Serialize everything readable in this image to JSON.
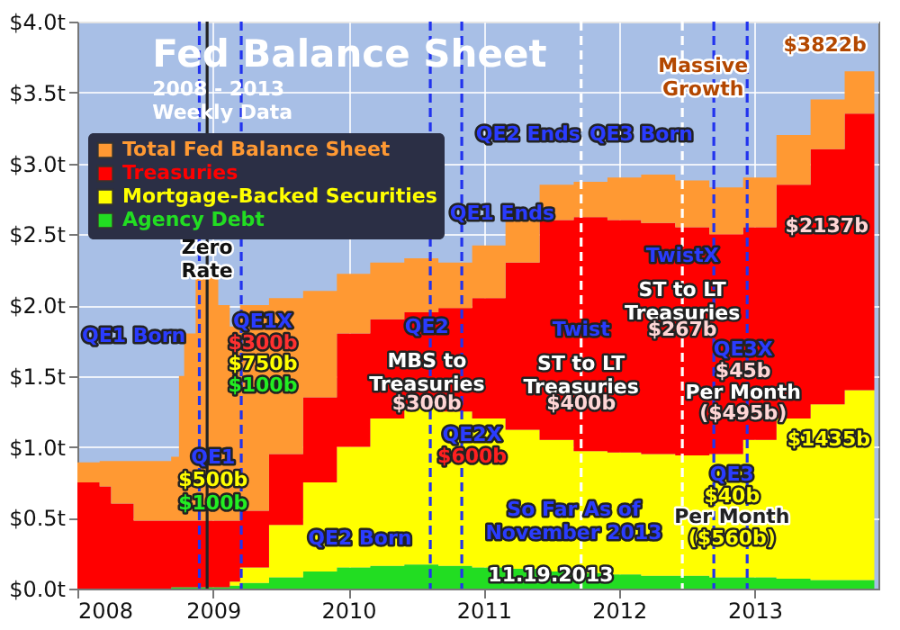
{
  "chart_data": {
    "type": "area",
    "stacked": true,
    "title": "Fed Balance Sheet",
    "subtitle": "2008 - 2013\nWeekly Data",
    "x": [
      "2008-01-01",
      "2008-03-01",
      "2008-04-01",
      "2008-06-01",
      "2008-09-10",
      "2008-10-01",
      "2008-10-15",
      "2008-11-15",
      "2008-12-17",
      "2009-01-15",
      "2009-02-15",
      "2009-03-15",
      "2009-06-01",
      "2009-09-01",
      "2009-12-01",
      "2010-03-01",
      "2010-06-01",
      "2010-09-01",
      "2010-12-01",
      "2011-03-01",
      "2011-06-01",
      "2011-09-01",
      "2011-12-01",
      "2012-03-01",
      "2012-06-01",
      "2012-09-01",
      "2012-12-01",
      "2013-03-01",
      "2013-06-01",
      "2013-09-01",
      "2013-11-20"
    ],
    "series": [
      {
        "name": "Agency Debt",
        "color": "#22dd22",
        "values": [
          0,
          0,
          0,
          0,
          0.01,
          0.01,
          0.01,
          0.01,
          0.01,
          0.01,
          0.02,
          0.04,
          0.08,
          0.12,
          0.15,
          0.16,
          0.17,
          0.16,
          0.15,
          0.14,
          0.12,
          0.11,
          0.1,
          0.09,
          0.09,
          0.08,
          0.08,
          0.07,
          0.06,
          0.06,
          0.06
        ]
      },
      {
        "name": "Mortgage-Backed Securities",
        "color": "#ffff00",
        "values": [
          0,
          0,
          0,
          0,
          0,
          0,
          0,
          0,
          0,
          0,
          0.03,
          0.11,
          0.37,
          0.63,
          0.85,
          1.04,
          1.11,
          1.09,
          1.05,
          0.98,
          0.93,
          0.86,
          0.86,
          0.86,
          0.85,
          0.87,
          0.97,
          1.13,
          1.24,
          1.34,
          1.43
        ]
      },
      {
        "name": "Treasuries",
        "color": "#ff0000",
        "values": [
          0.75,
          0.72,
          0.6,
          0.48,
          0.47,
          0.47,
          0.47,
          0.47,
          0.47,
          0.47,
          0.43,
          0.4,
          0.5,
          0.6,
          0.8,
          0.7,
          0.67,
          0.73,
          0.85,
          1.18,
          1.55,
          1.65,
          1.64,
          1.63,
          1.61,
          1.55,
          1.5,
          1.65,
          1.8,
          1.95,
          2.14
        ]
      },
      {
        "name": "Total Fed Balance Sheet",
        "color": "#ff9933",
        "values": [
          0.14,
          0.18,
          0.3,
          0.42,
          0.45,
          1.02,
          1.32,
          1.72,
          1.77,
          1.52,
          1.37,
          1.45,
          1.1,
          0.75,
          0.42,
          0.4,
          0.38,
          0.32,
          0.37,
          0.3,
          0.25,
          0.25,
          0.3,
          0.34,
          0.33,
          0.33,
          0.35,
          0.35,
          0.35,
          0.3,
          0.19
        ]
      }
    ],
    "xlim": [
      "2008-01-01",
      "2013-12-01"
    ],
    "xticks": [
      "2008",
      "2009",
      "2010",
      "2011",
      "2012",
      "2013"
    ],
    "ylim": [
      0,
      4
    ],
    "yticks": [
      {
        "value": 0,
        "label": "$0.0t"
      },
      {
        "value": 0.5,
        "label": "$0.5t"
      },
      {
        "value": 1,
        "label": "$1.0t"
      },
      {
        "value": 1.5,
        "label": "$1.5t"
      },
      {
        "value": 2,
        "label": "$2.0t"
      },
      {
        "value": 2.5,
        "label": "$2.5t"
      },
      {
        "value": 3,
        "label": "$3.0t"
      },
      {
        "value": 3.5,
        "label": "$3.5t"
      },
      {
        "value": 4,
        "label": "$4.0t"
      }
    ],
    "grid": true,
    "legend": "top left",
    "ref_lines": [
      {
        "axis": "x",
        "value": "2008-11-25",
        "color": "#2233ee",
        "line_style": "dashed"
      },
      {
        "axis": "x",
        "value": "2008-12-16",
        "color": "#222222",
        "line_style": "solid"
      },
      {
        "axis": "x",
        "value": "2009-03-18",
        "color": "#2233ee",
        "line_style": "dashed"
      },
      {
        "axis": "x",
        "value": "2010-08-10",
        "color": "#2233ee",
        "line_style": "dashed"
      },
      {
        "axis": "x",
        "value": "2010-11-03",
        "color": "#2233ee",
        "line_style": "dashed"
      },
      {
        "axis": "x",
        "value": "2011-09-21",
        "color": "#ffffff",
        "line_style": "dashed"
      },
      {
        "axis": "x",
        "value": "2012-06-20",
        "color": "#ffffff",
        "line_style": "dashed"
      },
      {
        "axis": "x",
        "value": "2012-09-13",
        "color": "#2233ee",
        "line_style": "dashed"
      },
      {
        "axis": "x",
        "value": "2012-12-12",
        "color": "#2233ee",
        "line_style": "dashed"
      }
    ],
    "annotations": [
      "QE1 Born",
      "Zero\nRate",
      "QE1 Ends",
      "QE2 Ends",
      "QE3 Born",
      "Massive\nGrowth",
      "$3822b",
      "$2137b",
      "QE1X",
      "$300b",
      "$750b",
      "$100b",
      "QE1",
      "$500b",
      "$100b",
      "QE2",
      "MBS to\nTreasuries",
      "$300b",
      "QE2X",
      "$600b",
      "QE2 Born",
      "Twist",
      "ST to LT\nTreasuries",
      "$400b",
      "TwistX",
      "ST to LT\nTreasuries",
      "$267b",
      "QE3X",
      "$45b",
      "Per Month",
      "($495b)",
      "So Far As of\nNovember 2013",
      "QE3",
      "$40b",
      "Per Month",
      "($560b)",
      "$1435b",
      "11.19.2013"
    ]
  }
}
